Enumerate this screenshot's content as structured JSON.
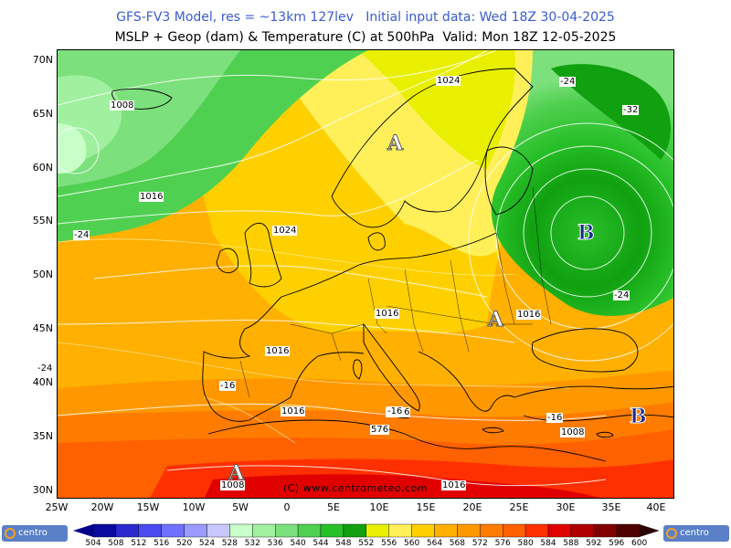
{
  "header": {
    "line1": "GFS-FV3 Model, res = ~13km 127lev   Initial input data: Wed 18Z 30-04-2025",
    "line2": "MSLP + Geop (dam) & Temperature (C) at 500hPa  Valid: Mon 18Z 12-05-2025"
  },
  "axes": {
    "lat_labels": [
      "70N",
      "65N",
      "60N",
      "55N",
      "50N",
      "45N",
      "40N",
      "35N",
      "30N"
    ],
    "lon_labels": [
      "25W",
      "20W",
      "15W",
      "10W",
      "5W",
      "0",
      "5E",
      "10E",
      "15E",
      "20E",
      "25E",
      "30E",
      "35E",
      "40E"
    ]
  },
  "colorbar": {
    "values": [
      "504",
      "508",
      "512",
      "516",
      "520",
      "524",
      "528",
      "532",
      "536",
      "540",
      "544",
      "548",
      "552",
      "556",
      "560",
      "564",
      "568",
      "572",
      "576",
      "580",
      "584",
      "588",
      "592",
      "596",
      "600"
    ],
    "colors": [
      "#0a0aa0",
      "#2a2ad0",
      "#4a4af0",
      "#7070ff",
      "#9a9aff",
      "#c8c8ff",
      "#c8ffc8",
      "#a0f0a0",
      "#7ce07c",
      "#50d050",
      "#28c028",
      "#10a010",
      "#e8f000",
      "#fff05a",
      "#ffd000",
      "#ffb000",
      "#ff9800",
      "#ff7c00",
      "#ff6000",
      "#ff3000",
      "#e00000",
      "#b00000",
      "#800000",
      "#500000"
    ],
    "left_arrow_color": "#00008a",
    "right_arrow_color": "#2a0000"
  },
  "logos": {
    "left_text": "centro",
    "right_text": "centro"
  },
  "copyright": "(C) www.centrometeo.com",
  "isobar_labels": [
    "1008",
    "1016",
    "1024",
    "1024",
    "1016",
    "1016",
    "1016",
    "1016",
    "1008",
    "1016",
    "1008",
    "1016"
  ],
  "temp_labels": [
    "-24",
    "-24",
    "-32",
    "-24",
    "-24",
    "-16",
    "-16",
    "-16",
    "576"
  ],
  "pressure_centers": [
    {
      "letter": "A",
      "type": "high"
    },
    {
      "letter": "A",
      "type": "high"
    },
    {
      "letter": "A",
      "type": "high"
    },
    {
      "letter": "B",
      "type": "low"
    },
    {
      "letter": "B",
      "type": "low"
    }
  ]
}
